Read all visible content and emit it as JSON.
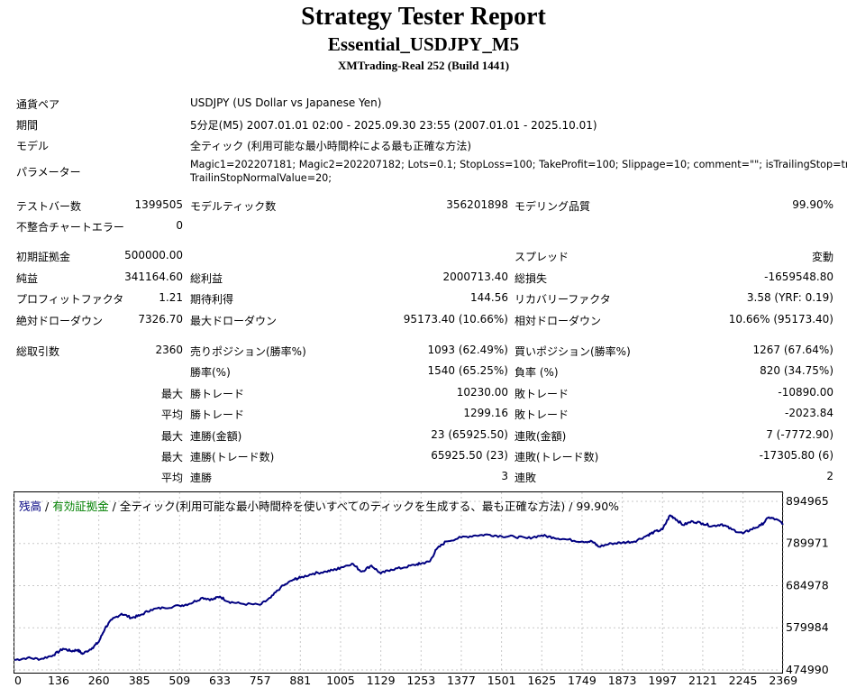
{
  "header": {
    "title": "Strategy Tester Report",
    "subtitle": "Essential_USDJPY_M5",
    "server": "XMTrading-Real 252 (Build 1441)"
  },
  "info": {
    "symbol_label": "通貨ペア",
    "symbol_value": "USDJPY (US Dollar vs Japanese Yen)",
    "period_label": "期間",
    "period_value": "5分足(M5) 2007.01.01 02:00 - 2025.09.30 23:55 (2007.01.01 - 2025.10.01)",
    "model_label": "モデル",
    "model_value": "全ティック (利用可能な最小時間枠による最も正確な方法)",
    "params_label": "パラメーター",
    "params_line1": "Magic1=202207181; Magic2=202207182; Lots=0.1; StopLoss=100; TakeProfit=100; Slippage=10; comment=\"\"; isTrailingStop=true;",
    "params_line2": "TrailinStopNormalValue=20;"
  },
  "stats": {
    "bars_label": "テストバー数",
    "bars_value": "1399505",
    "ticks_label": "モデルティック数",
    "ticks_value": "356201898",
    "quality_label": "モデリング品質",
    "quality_value": "99.90%",
    "mismatch_label": "不整合チャートエラー",
    "mismatch_value": "0",
    "deposit_label": "初期証拠金",
    "deposit_value": "500000.00",
    "spread_label": "スプレッド",
    "spread_value": "変動",
    "net_label": "純益",
    "net_value": "341164.60",
    "gross_profit_label": "総利益",
    "gross_profit_value": "2000713.40",
    "gross_loss_label": "総損失",
    "gross_loss_value": "-1659548.80",
    "pf_label": "プロフィットファクタ",
    "pf_value": "1.21",
    "expected_label": "期待利得",
    "expected_value": "144.56",
    "recovery_label": "リカバリーファクタ",
    "recovery_value": "3.58 (YRF: 0.19)",
    "abs_dd_label": "絶対ドローダウン",
    "abs_dd_value": "7326.70",
    "max_dd_label": "最大ドローダウン",
    "max_dd_value": "95173.40 (10.66%)",
    "rel_dd_label": "相対ドローダウン",
    "rel_dd_value": "10.66% (95173.40)",
    "total_trades_label": "総取引数",
    "total_trades_value": "2360",
    "short_label": "売りポジション(勝率%)",
    "short_value": "1093 (62.49%)",
    "long_label": "買いポジション(勝率%)",
    "long_value": "1267 (67.64%)",
    "win_rate_label": "勝率(%)",
    "win_rate_value": "1540 (65.25%)",
    "loss_rate_label": "負率 (%)",
    "loss_rate_value": "820 (34.75%)",
    "max_label": "最大",
    "avg_label": "平均",
    "win_trade_label": "勝トレード",
    "loss_trade_label": "敗トレード",
    "max_win_value": "10230.00",
    "max_loss_value": "-10890.00",
    "avg_win_value": "1299.16",
    "avg_loss_value": "-2023.84",
    "consec_wins_money_label": "連勝(金額)",
    "consec_wins_money_value": "23 (65925.50)",
    "consec_losses_money_label": "連敗(金額)",
    "consec_losses_money_value": "7 (-7772.90)",
    "consec_wins_trades_label": "連勝(トレード数)",
    "consec_wins_trades_value": "65925.50 (23)",
    "consec_losses_trades_label": "連敗(トレード数)",
    "consec_losses_trades_value": "-17305.80 (6)",
    "avg_consec_wins_label": "連勝",
    "avg_consec_wins_value": "3",
    "avg_consec_losses_label": "連敗",
    "avg_consec_losses_value": "2"
  },
  "legend": {
    "balance": "残高",
    "sep1": " / ",
    "equity": "有効証拠金",
    "rest": " / 全ティック(利用可能な最小時間枠を使いすべてのティックを生成する、最も正確な方法) / 99.90%",
    "balance_color": "#000080",
    "equity_color": "#008000"
  },
  "chart_data": {
    "type": "line",
    "title": "",
    "xlabel": "",
    "ylabel": "",
    "xlim": [
      0,
      2360
    ],
    "ylim": [
      474990,
      894965
    ],
    "x_ticks": [
      "0",
      "136",
      "260",
      "385",
      "509",
      "633",
      "757",
      "881",
      "1005",
      "1129",
      "1253",
      "1377",
      "1501",
      "1625",
      "1749",
      "1873",
      "1997",
      "2121",
      "2245",
      "2369"
    ],
    "x_tick_values": [
      0,
      136,
      260,
      385,
      509,
      633,
      757,
      881,
      1005,
      1129,
      1253,
      1377,
      1501,
      1625,
      1749,
      1873,
      1997,
      2121,
      2245,
      2369
    ],
    "y_ticks": [
      "894965",
      "789971",
      "684978",
      "579984",
      "474990"
    ],
    "y_tick_values": [
      894965,
      789971,
      684978,
      579984,
      474990
    ],
    "line_color": "#000080",
    "grid": true,
    "series": [
      {
        "values": [
          [
            0,
            500000
          ],
          [
            40,
            505000
          ],
          [
            80,
            502000
          ],
          [
            120,
            512000
          ],
          [
            150,
            528000
          ],
          [
            175,
            522000
          ],
          [
            195,
            525000
          ],
          [
            210,
            515000
          ],
          [
            240,
            530000
          ],
          [
            260,
            545000
          ],
          [
            280,
            580000
          ],
          [
            300,
            600000
          ],
          [
            330,
            615000
          ],
          [
            360,
            605000
          ],
          [
            385,
            610000
          ],
          [
            420,
            625000
          ],
          [
            460,
            630000
          ],
          [
            509,
            635000
          ],
          [
            540,
            640000
          ],
          [
            580,
            655000
          ],
          [
            610,
            650000
          ],
          [
            633,
            658000
          ],
          [
            660,
            645000
          ],
          [
            700,
            640000
          ],
          [
            757,
            637000
          ],
          [
            790,
            655000
          ],
          [
            820,
            680000
          ],
          [
            860,
            700000
          ],
          [
            881,
            705000
          ],
          [
            920,
            715000
          ],
          [
            960,
            720000
          ],
          [
            990,
            725000
          ],
          [
            1005,
            730000
          ],
          [
            1040,
            740000
          ],
          [
            1070,
            720000
          ],
          [
            1100,
            735000
          ],
          [
            1129,
            715000
          ],
          [
            1160,
            725000
          ],
          [
            1200,
            730000
          ],
          [
            1240,
            738000
          ],
          [
            1253,
            740000
          ],
          [
            1280,
            745000
          ],
          [
            1300,
            775000
          ],
          [
            1330,
            795000
          ],
          [
            1377,
            805000
          ],
          [
            1420,
            810000
          ],
          [
            1460,
            812000
          ],
          [
            1501,
            808000
          ],
          [
            1540,
            807000
          ],
          [
            1580,
            803000
          ],
          [
            1625,
            810000
          ],
          [
            1660,
            805000
          ],
          [
            1700,
            800000
          ],
          [
            1749,
            795000
          ],
          [
            1780,
            795000
          ],
          [
            1800,
            782000
          ],
          [
            1840,
            790000
          ],
          [
            1873,
            792000
          ],
          [
            1910,
            795000
          ],
          [
            1950,
            810000
          ],
          [
            1970,
            818000
          ],
          [
            1997,
            825000
          ],
          [
            2020,
            860000
          ],
          [
            2035,
            853000
          ],
          [
            2060,
            836000
          ],
          [
            2090,
            845000
          ],
          [
            2121,
            840000
          ],
          [
            2150,
            833000
          ],
          [
            2180,
            838000
          ],
          [
            2210,
            825000
          ],
          [
            2245,
            815000
          ],
          [
            2270,
            825000
          ],
          [
            2300,
            835000
          ],
          [
            2325,
            855000
          ],
          [
            2345,
            850000
          ],
          [
            2369,
            840000
          ]
        ]
      }
    ]
  }
}
